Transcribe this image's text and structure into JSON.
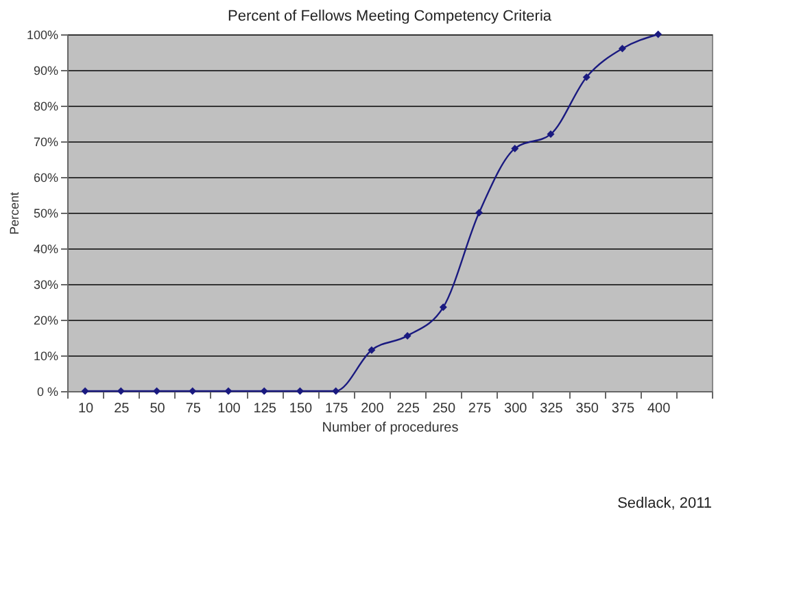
{
  "chart_data": {
    "type": "line",
    "title": "Percent of Fellows Meeting Competency Criteria",
    "xlabel": "Number of procedures",
    "ylabel": "Percent",
    "categories": [
      "10",
      "25",
      "50",
      "75",
      "100",
      "125",
      "150",
      "175",
      "200",
      "225",
      "250",
      "275",
      "300",
      "325",
      "350",
      "375",
      "400"
    ],
    "series": [
      {
        "color": "#1a1a80",
        "values": [
          0,
          0,
          0,
          0,
          0,
          0,
          0,
          0,
          11.5,
          15.5,
          23.5,
          50,
          68,
          72,
          88,
          96,
          100
        ]
      }
    ],
    "ylim": [
      0,
      100
    ],
    "yticks": [
      {
        "value": 0,
        "label": "0 %"
      },
      {
        "value": 10,
        "label": "10%"
      },
      {
        "value": 20,
        "label": "20%"
      },
      {
        "value": 30,
        "label": "30%"
      },
      {
        "value": 40,
        "label": "40%"
      },
      {
        "value": 50,
        "label": "50%"
      },
      {
        "value": 60,
        "label": "60%"
      },
      {
        "value": 70,
        "label": "70%"
      },
      {
        "value": 80,
        "label": "80%"
      },
      {
        "value": 90,
        "label": "90%"
      },
      {
        "value": 100,
        "label": "100%"
      }
    ],
    "grid": "y",
    "marker": "diamond",
    "line_style": "solid",
    "legend": false,
    "annotations": [
      "Sedlack, 2011"
    ]
  }
}
